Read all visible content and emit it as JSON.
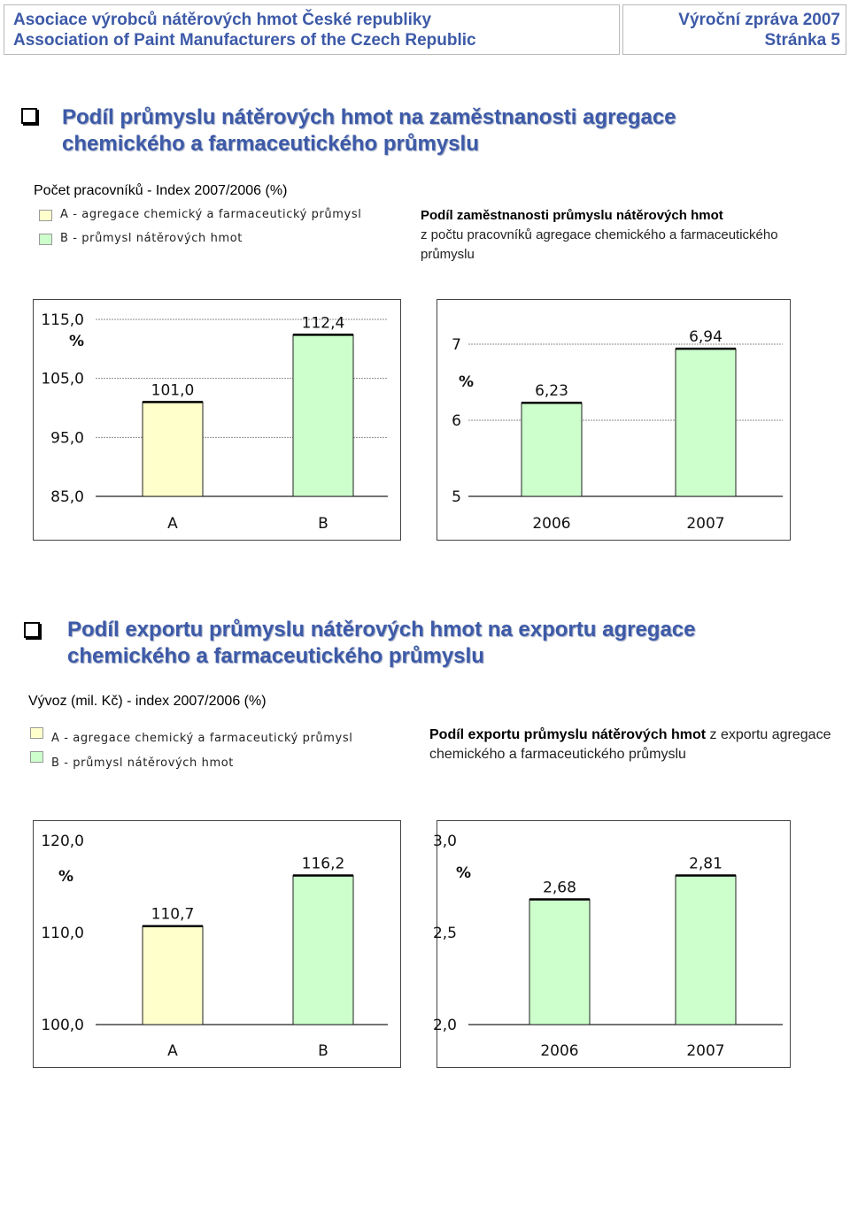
{
  "header": {
    "org_cz": "Asociace výrobců nátěrových hmot České republiky",
    "org_en": "Association of Paint Manufacturers of the Czech Republic",
    "report": "Výroční zpráva 2007",
    "page": "Stránka 5"
  },
  "section1": {
    "title_line1": "Podíl průmyslu nátěrových hmot na zaměstnanosti agregace",
    "title_line2": "chemického a farmaceutického průmyslu",
    "subheading": "Počet pracovníků - Index 2007/2006 (%)",
    "legend_a": "A - agregace chemický a farmaceutický průmysl",
    "legend_b": "B - průmysl nátěrových hmot",
    "note_bold": "Podíl zaměstnanosti průmyslu nátěrových hmot",
    "note_rest": "z počtu pracovníků agregace chemického a farmaceutického průmyslu"
  },
  "section2": {
    "title_line1": "Podíl exportu průmyslu nátěrových hmot na exportu agregace",
    "title_line2": "chemického a farmaceutického průmyslu",
    "subheading": "Vývoz (mil. Kč)  -  index 2007/2006 (%)",
    "legend_a": "A -  agregace chemický a farmaceutický průmysl",
    "legend_b": "B - průmysl nátěrových hmot",
    "note_bold": "Podíl exportu průmyslu nátěrových hmot",
    "note_rest": " z exportu agregace chemického a farmaceutického průmyslu"
  },
  "colors": {
    "bar_a": "#ffffcc",
    "bar_b": "#ccffcc",
    "title": "#3d5aa8"
  },
  "chart_data": [
    {
      "type": "bar",
      "categories": [
        "A",
        "B"
      ],
      "values": [
        101.0,
        112.4
      ],
      "labels": [
        "101,0",
        "112,4"
      ],
      "unit": "%",
      "ylim": [
        85,
        115
      ],
      "ticks": [
        115,
        105,
        95,
        85
      ],
      "tick_labels": [
        "115,0",
        "105,0",
        "95,0",
        "85,0"
      ],
      "colors": [
        "#ffffcc",
        "#ccffcc"
      ],
      "grid": true
    },
    {
      "type": "bar",
      "categories": [
        "2006",
        "2007"
      ],
      "values": [
        6.23,
        6.94
      ],
      "labels": [
        "6,23",
        "6,94"
      ],
      "unit": "%",
      "ylim": [
        5,
        7
      ],
      "ticks": [
        7,
        6,
        5
      ],
      "tick_labels": [
        "7",
        "6",
        "5"
      ],
      "colors": [
        "#ccffcc",
        "#ccffcc"
      ],
      "grid": true
    },
    {
      "type": "bar",
      "categories": [
        "A",
        "B"
      ],
      "values": [
        110.7,
        116.2
      ],
      "labels": [
        "110,7",
        "116,2"
      ],
      "unit": "%",
      "ylim": [
        100,
        120
      ],
      "ticks": [
        120,
        110,
        100
      ],
      "tick_labels": [
        "120,0",
        "110,0",
        "100,0"
      ],
      "colors": [
        "#ffffcc",
        "#ccffcc"
      ],
      "grid": false
    },
    {
      "type": "bar",
      "categories": [
        "2006",
        "2007"
      ],
      "values": [
        2.68,
        2.81
      ],
      "labels": [
        "2,68",
        "2,81"
      ],
      "unit": "%",
      "ylim": [
        2.0,
        3.0
      ],
      "ticks": [
        3.0,
        2.5,
        2.0
      ],
      "tick_labels": [
        "3,0",
        "2,5",
        "2,0"
      ],
      "colors": [
        "#ccffcc",
        "#ccffcc"
      ],
      "grid": false
    }
  ]
}
